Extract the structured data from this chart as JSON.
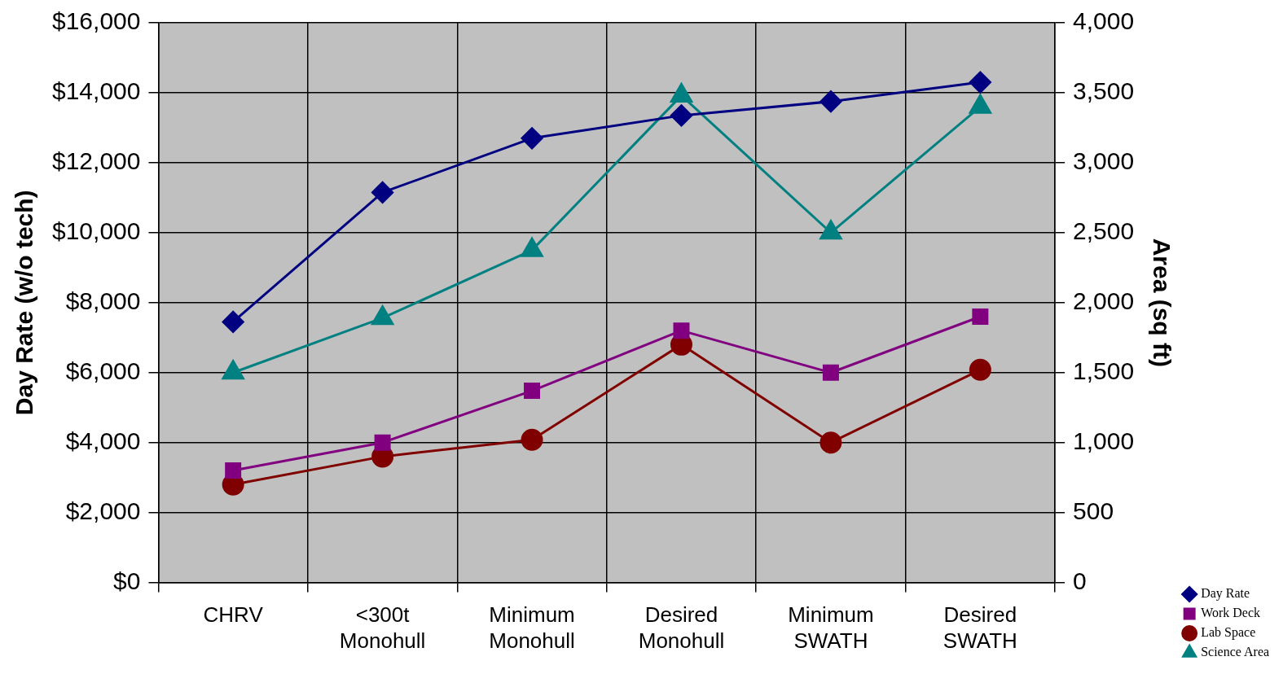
{
  "chart_data": {
    "type": "line",
    "categories": [
      "CHRV",
      "<300t Monohull",
      "Minimum Monohull",
      "Desired Monohull",
      "Minimum SWATH",
      "Desired SWATH"
    ],
    "series": [
      {
        "name": "Day Rate",
        "color": "#000080",
        "marker": "diamond",
        "values": [
          7450,
          11150,
          12700,
          13350,
          13750,
          14300
        ]
      },
      {
        "name": "Work Deck",
        "color": "#800080",
        "marker": "square",
        "axis": "y2",
        "values": [
          800,
          1000,
          1370,
          1800,
          1500,
          1900
        ]
      },
      {
        "name": "Lab Space",
        "color": "#800000",
        "marker": "circle",
        "axis": "y2",
        "values": [
          700,
          900,
          1020,
          1700,
          1000,
          1520
        ]
      },
      {
        "name": "Science Area",
        "color": "#008080",
        "marker": "triangle",
        "axis": "y2",
        "values": [
          1500,
          1890,
          2375,
          3480,
          2500,
          3400
        ]
      }
    ],
    "ylabel": "Day Rate (w/o tech)",
    "y2label": "Area (sq ft)",
    "ylim": [
      0,
      16000
    ],
    "yticks": [
      {
        "value": 0,
        "label": "$0"
      },
      {
        "value": 2000,
        "label": "$2,000"
      },
      {
        "value": 4000,
        "label": "$4,000"
      },
      {
        "value": 6000,
        "label": "$6,000"
      },
      {
        "value": 8000,
        "label": "$8,000"
      },
      {
        "value": 10000,
        "label": "$10,000"
      },
      {
        "value": 12000,
        "label": "$12,000"
      },
      {
        "value": 14000,
        "label": "$14,000"
      },
      {
        "value": 16000,
        "label": "$16,000"
      }
    ],
    "y2lim": [
      0,
      4000
    ],
    "y2ticks": [
      0,
      500,
      {
        "value": 1000,
        "label": "1,000"
      },
      {
        "value": 1500,
        "label": "1,500"
      },
      {
        "value": 2000,
        "label": "2,000"
      },
      {
        "value": 2500,
        "label": "2,500"
      },
      {
        "value": 3000,
        "label": "3,000"
      },
      {
        "value": 3500,
        "label": "3,500"
      },
      {
        "value": 4000,
        "label": "4,000"
      }
    ],
    "grid": true,
    "legend": "bottom right",
    "line_style": "solid"
  }
}
